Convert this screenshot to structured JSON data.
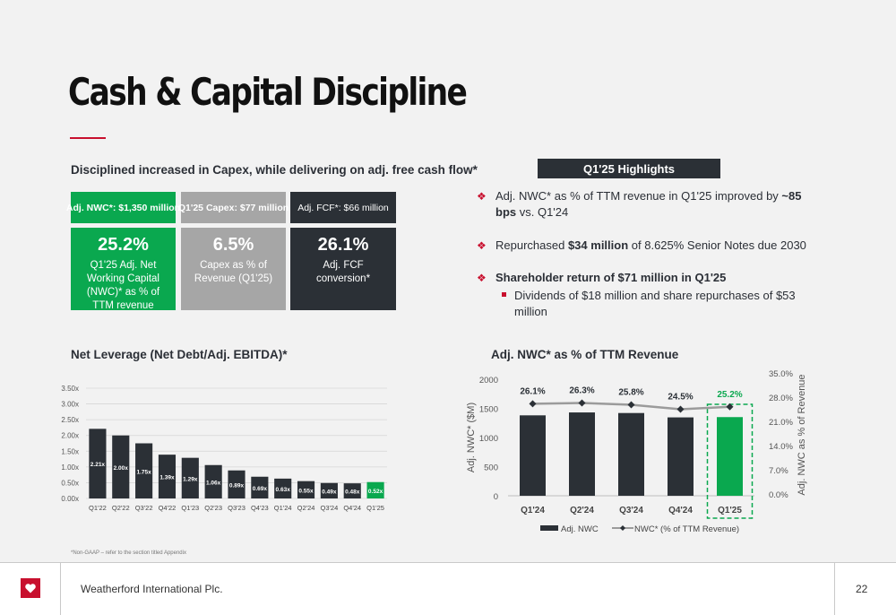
{
  "title": "Cash & Capital Discipline",
  "left_section_title": "Disciplined increased in Capex, while delivering on adj. free cash flow*",
  "kpis": [
    {
      "header": "Adj. NWC*: $1,350 million",
      "value": "25.2%",
      "desc": "Q1'25 Adj. Net Working Capital (NWC)* as % of TTM revenue",
      "color": "#0aa84f"
    },
    {
      "header": "Q1'25 Capex: $77 million",
      "value": "6.5%",
      "desc": "Capex as % of Revenue (Q1'25)",
      "color": "#a6a6a6"
    },
    {
      "header": "Adj. FCF*: $66 million",
      "value": "26.1%",
      "desc": "Adj. FCF conversion*",
      "color": "#2b3036"
    }
  ],
  "highlights": {
    "title": "Q1'25 Highlights",
    "items": [
      {
        "pre": "Adj. NWC* as % of TTM revenue in Q1'25 improved by ",
        "bold": "~85 bps",
        "post": " vs. Q1'24"
      },
      {
        "pre": "Repurchased ",
        "bold": "$34 million",
        "post": " of 8.625% Senior Notes due 2030"
      },
      {
        "pre": "",
        "bold": "Shareholder return of $71 million in Q1'25",
        "post": "",
        "sub": "Dividends of $18 million and share repurchases of $53 million"
      }
    ]
  },
  "chart_data": [
    {
      "type": "bar",
      "title": "Net Leverage (Net Debt/Adj. EBITDA)*",
      "categories": [
        "Q1'22",
        "Q2'22",
        "Q3'22",
        "Q4'22",
        "Q1'23",
        "Q2'23",
        "Q3'23",
        "Q4'23",
        "Q1'24",
        "Q2'24",
        "Q3'24",
        "Q4'24",
        "Q1'25"
      ],
      "values": [
        2.21,
        2.0,
        1.75,
        1.39,
        1.29,
        1.06,
        0.89,
        0.69,
        0.63,
        0.55,
        0.49,
        0.48,
        0.52
      ],
      "labels": [
        "2.21x",
        "2.00x",
        "1.75x",
        "1.39x",
        "1.29x",
        "1.06x",
        "0.89x",
        "0.69x",
        "0.63x",
        "0.55x",
        "0.49x",
        "0.48x",
        "0.52x"
      ],
      "y_ticks": [
        "0.00x",
        "0.50x",
        "1.00x",
        "1.50x",
        "2.00x",
        "2.50x",
        "3.00x",
        "3.50x"
      ],
      "ylim": [
        0,
        3.5
      ],
      "grid": true,
      "bar_color": "#2b3036",
      "highlight_color": "#0aa84f"
    },
    {
      "type": "bar+line",
      "title": "Adj. NWC* as % of TTM Revenue",
      "categories": [
        "Q1'24",
        "Q2'24",
        "Q3'24",
        "Q4'24",
        "Q1'25"
      ],
      "series": [
        {
          "name": "Adj. NWC",
          "type": "bar",
          "axis": "left",
          "values": [
            1380,
            1430,
            1420,
            1345,
            1350
          ]
        },
        {
          "name": "NWC* (% of TTM Revenue)",
          "type": "line",
          "axis": "right",
          "values": [
            26.1,
            26.3,
            25.8,
            24.5,
            25.2
          ]
        }
      ],
      "line_labels": [
        "26.1%",
        "26.3%",
        "25.8%",
        "24.5%",
        "25.2%"
      ],
      "ylabel": "Adj. NWC* ($M)",
      "ylabel_right": "Adj. NWC as % of Revenue",
      "ylim": [
        0,
        2000
      ],
      "ylim_right": [
        0,
        35
      ],
      "y_ticks": [
        "0",
        "500",
        "1000",
        "1500",
        "2000"
      ],
      "y_ticks_right": [
        "0.0%",
        "7.0%",
        "14.0%",
        "21.0%",
        "28.0%",
        "35.0%"
      ],
      "legend": "bottom",
      "bar_color": "#2b3036",
      "highlight_color": "#0aa84f",
      "line_color": "#9b9b9b"
    }
  ],
  "footnote": "*Non-GAAP – refer to the section titled Appendix",
  "footer": {
    "company": "Weatherford International Plc.",
    "page": "22"
  },
  "colors": {
    "accent": "#c8102e",
    "green": "#0aa84f",
    "dark": "#2b3036"
  }
}
